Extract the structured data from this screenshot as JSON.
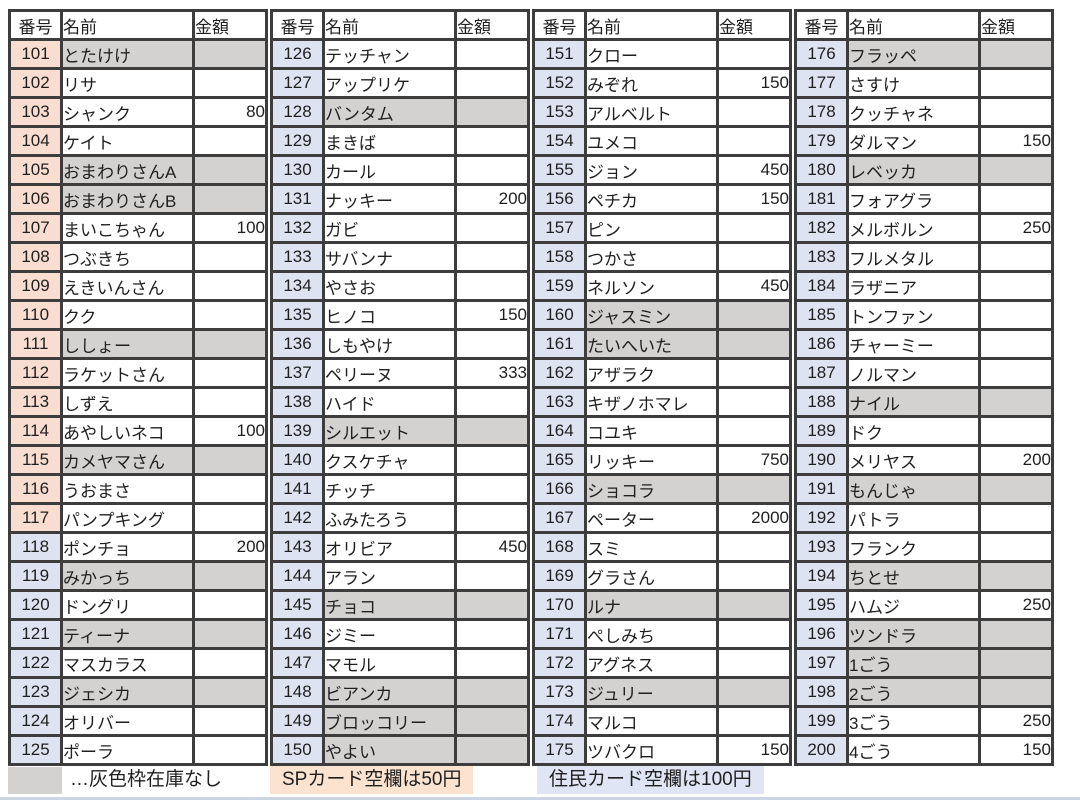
{
  "table": {
    "header": {
      "number": "番号",
      "name": "名前",
      "amount": "金額"
    },
    "row_fields": [
      "number",
      "name",
      "amount",
      "out_of_stock"
    ],
    "sp_number_range": [
      101,
      117
    ],
    "resident_number_range": [
      118,
      200
    ],
    "groups": [
      {
        "rows": [
          [
            "101",
            "とたけけ",
            "",
            true
          ],
          [
            "102",
            "リサ",
            "",
            false
          ],
          [
            "103",
            "シャンク",
            "80",
            false
          ],
          [
            "104",
            "ケイト",
            "",
            false
          ],
          [
            "105",
            "おまわりさんA",
            "",
            true
          ],
          [
            "106",
            "おまわりさんB",
            "",
            true
          ],
          [
            "107",
            "まいこちゃん",
            "100",
            false
          ],
          [
            "108",
            "つぶきち",
            "",
            false
          ],
          [
            "109",
            "えきいんさん",
            "",
            false
          ],
          [
            "110",
            "クク",
            "",
            false
          ],
          [
            "111",
            "ししょー",
            "",
            true
          ],
          [
            "112",
            "ラケットさん",
            "",
            false
          ],
          [
            "113",
            "しずえ",
            "",
            false
          ],
          [
            "114",
            "あやしいネコ",
            "100",
            false
          ],
          [
            "115",
            "カメヤマさん",
            "",
            true
          ],
          [
            "116",
            "うおまさ",
            "",
            false
          ],
          [
            "117",
            "パンプキング",
            "",
            false
          ],
          [
            "118",
            "ポンチョ",
            "200",
            false
          ],
          [
            "119",
            "みかっち",
            "",
            true
          ],
          [
            "120",
            "ドングリ",
            "",
            false
          ],
          [
            "121",
            "ティーナ",
            "",
            true
          ],
          [
            "122",
            "マスカラス",
            "",
            false
          ],
          [
            "123",
            "ジェシカ",
            "",
            true
          ],
          [
            "124",
            "オリバー",
            "",
            false
          ],
          [
            "125",
            "ポーラ",
            "",
            false
          ]
        ]
      },
      {
        "rows": [
          [
            "126",
            "テッチャン",
            "",
            false
          ],
          [
            "127",
            "アップリケ",
            "",
            false
          ],
          [
            "128",
            "バンタム",
            "",
            true
          ],
          [
            "129",
            "まきば",
            "",
            false
          ],
          [
            "130",
            "カール",
            "",
            false
          ],
          [
            "131",
            "ナッキー",
            "200",
            false
          ],
          [
            "132",
            "ガビ",
            "",
            false
          ],
          [
            "133",
            "サバンナ",
            "",
            false
          ],
          [
            "134",
            "やさお",
            "",
            false
          ],
          [
            "135",
            "ヒノコ",
            "150",
            false
          ],
          [
            "136",
            "しもやけ",
            "",
            false
          ],
          [
            "137",
            "ペリーヌ",
            "333",
            false
          ],
          [
            "138",
            "ハイド",
            "",
            false
          ],
          [
            "139",
            "シルエット",
            "",
            true
          ],
          [
            "140",
            "クスケチャ",
            "",
            false
          ],
          [
            "141",
            "チッチ",
            "",
            false
          ],
          [
            "142",
            "ふみたろう",
            "",
            false
          ],
          [
            "143",
            "オリビア",
            "450",
            false
          ],
          [
            "144",
            "アラン",
            "",
            false
          ],
          [
            "145",
            "チョコ",
            "",
            true
          ],
          [
            "146",
            "ジミー",
            "",
            false
          ],
          [
            "147",
            "マモル",
            "",
            false
          ],
          [
            "148",
            "ビアンカ",
            "",
            true
          ],
          [
            "149",
            "ブロッコリー",
            "",
            true
          ],
          [
            "150",
            "やよい",
            "",
            true
          ]
        ]
      },
      {
        "rows": [
          [
            "151",
            "クロー",
            "",
            false
          ],
          [
            "152",
            "みぞれ",
            "150",
            false
          ],
          [
            "153",
            "アルベルト",
            "",
            false
          ],
          [
            "154",
            "ユメコ",
            "",
            false
          ],
          [
            "155",
            "ジョン",
            "450",
            false
          ],
          [
            "156",
            "ペチカ",
            "150",
            false
          ],
          [
            "157",
            "ピン",
            "",
            false
          ],
          [
            "158",
            "つかさ",
            "",
            false
          ],
          [
            "159",
            "ネルソン",
            "450",
            false
          ],
          [
            "160",
            "ジャスミン",
            "",
            true
          ],
          [
            "161",
            "たいへいた",
            "",
            true
          ],
          [
            "162",
            "アザラク",
            "",
            false
          ],
          [
            "163",
            "キザノホマレ",
            "",
            false
          ],
          [
            "164",
            "コユキ",
            "",
            false
          ],
          [
            "165",
            "リッキー",
            "750",
            false
          ],
          [
            "166",
            "ショコラ",
            "",
            true
          ],
          [
            "167",
            "ペーター",
            "2000",
            false
          ],
          [
            "168",
            "スミ",
            "",
            false
          ],
          [
            "169",
            "グラさん",
            "",
            false
          ],
          [
            "170",
            "ルナ",
            "",
            true
          ],
          [
            "171",
            "ぺしみち",
            "",
            false
          ],
          [
            "172",
            "アグネス",
            "",
            false
          ],
          [
            "173",
            "ジュリー",
            "",
            true
          ],
          [
            "174",
            "マルコ",
            "",
            false
          ],
          [
            "175",
            "ツバクロ",
            "150",
            false
          ]
        ]
      },
      {
        "rows": [
          [
            "176",
            "フラッペ",
            "",
            true
          ],
          [
            "177",
            "さすけ",
            "",
            false
          ],
          [
            "178",
            "クッチャネ",
            "",
            false
          ],
          [
            "179",
            "ダルマン",
            "150",
            false
          ],
          [
            "180",
            "レベッカ",
            "",
            true
          ],
          [
            "181",
            "フォアグラ",
            "",
            false
          ],
          [
            "182",
            "メルボルン",
            "250",
            false
          ],
          [
            "183",
            "フルメタル",
            "",
            false
          ],
          [
            "184",
            "ラザニア",
            "",
            false
          ],
          [
            "185",
            "トンファン",
            "",
            false
          ],
          [
            "186",
            "チャーミー",
            "",
            false
          ],
          [
            "187",
            "ノルマン",
            "",
            false
          ],
          [
            "188",
            "ナイル",
            "",
            true
          ],
          [
            "189",
            "ドク",
            "",
            false
          ],
          [
            "190",
            "メリヤス",
            "200",
            false
          ],
          [
            "191",
            "もんじゃ",
            "",
            true
          ],
          [
            "192",
            "パトラ",
            "",
            false
          ],
          [
            "193",
            "フランク",
            "",
            false
          ],
          [
            "194",
            "ちとせ",
            "",
            true
          ],
          [
            "195",
            "ハムジ",
            "250",
            false
          ],
          [
            "196",
            "ツンドラ",
            "",
            true
          ],
          [
            "197",
            "1ごう",
            "",
            true
          ],
          [
            "198",
            "2ごう",
            "",
            true
          ],
          [
            "199",
            "3ごう",
            "250",
            false
          ],
          [
            "200",
            "4ごう",
            "150",
            false
          ]
        ]
      }
    ]
  },
  "legend": {
    "gray_note": "…灰色枠在庫なし",
    "sp_note": "SPカード空欄は50円",
    "resident_note": "住民カード空欄は100円"
  },
  "colors": {
    "border": "#3d3d3d",
    "sp_number_bg": "#f8ddd0",
    "resident_number_bg": "#dde3f0",
    "out_of_stock_bg": "#d4d1d1",
    "sp_note_bg": "#fbe3d0",
    "resident_note_bg": "#dfe5f4",
    "bottom_line": "#ccd5e4"
  }
}
